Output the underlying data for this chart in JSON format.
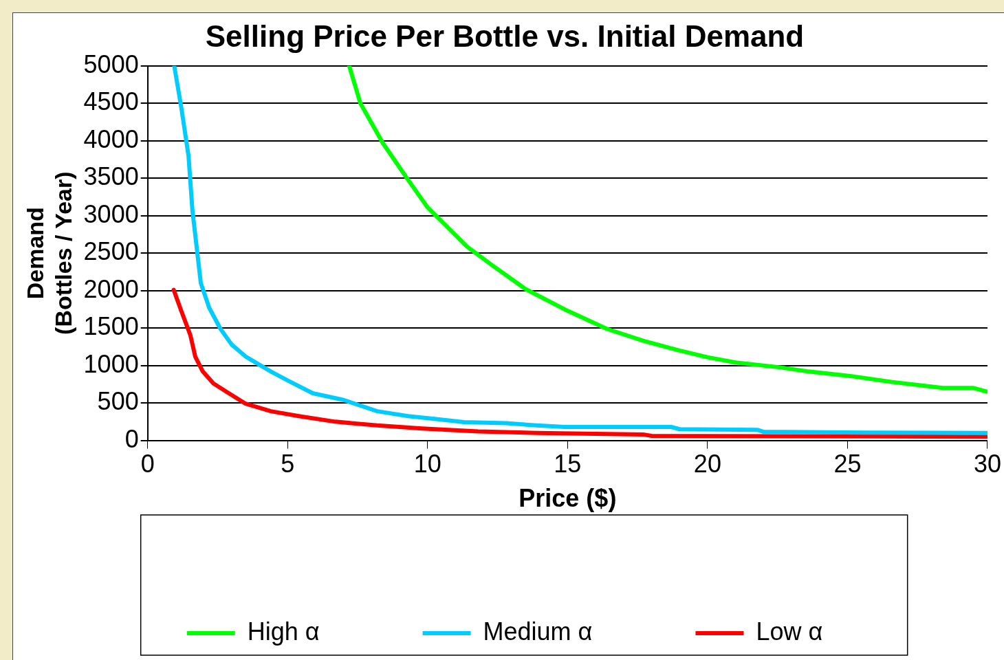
{
  "chart_data": {
    "type": "line",
    "title": "Selling Price Per Bottle vs. Initial Demand",
    "xlabel": "Price ($)",
    "ylabel": "Demand\n(Bottles / Year)",
    "xlim": [
      0,
      30
    ],
    "xticks": [
      0,
      5,
      10,
      15,
      20,
      25,
      30
    ],
    "ylim": [
      0,
      5000
    ],
    "yticks": [
      0,
      500,
      1000,
      1500,
      2000,
      2500,
      3000,
      3500,
      4000,
      4500,
      5000
    ],
    "grid": "y",
    "legend": "bottom",
    "marker": "none",
    "line_style": "solid",
    "series": [
      {
        "name": "High α",
        "color": "#00ff00",
        "x": [
          7.2,
          7.6,
          8.4,
          9.3,
          10.0,
          11.4,
          12.3,
          13.5,
          15.0,
          16.4,
          17.7,
          19.0,
          20.0,
          21.0,
          22.6,
          23.6,
          25.1,
          26.6,
          28.4,
          29.5,
          30
        ],
        "values": [
          5000,
          4500,
          3970,
          3480,
          3110,
          2590,
          2340,
          2020,
          1730,
          1490,
          1330,
          1200,
          1110,
          1040,
          975,
          920,
          860,
          780,
          700,
          700,
          650
        ]
      },
      {
        "name": "Medium α",
        "color": "#00ccff",
        "x": [
          0.95,
          1.2,
          1.46,
          1.6,
          1.9,
          2.2,
          2.6,
          3.0,
          3.5,
          4.4,
          5.0,
          5.9,
          7.0,
          8.2,
          9.3,
          10.3,
          11.3,
          12.8,
          13.9,
          14.9,
          18.7,
          19.0,
          21.8,
          22.0,
          25.6,
          30
        ],
        "values": [
          5000,
          4450,
          3800,
          3070,
          2100,
          1770,
          1490,
          1280,
          1120,
          920,
          800,
          630,
          540,
          390,
          325,
          285,
          245,
          230,
          200,
          180,
          180,
          150,
          140,
          115,
          105,
          100
        ]
      },
      {
        "name": "Low α",
        "color": "#ff0000",
        "x": [
          0.93,
          1.2,
          1.53,
          1.7,
          1.97,
          2.35,
          2.9,
          3.5,
          4.4,
          5.4,
          6.7,
          8.2,
          9.8,
          11.8,
          13.9,
          17.7,
          18.0,
          30
        ],
        "values": [
          2010,
          1730,
          1400,
          1120,
          920,
          760,
          630,
          490,
          390,
          325,
          250,
          200,
          160,
          120,
          100,
          80,
          60,
          50
        ]
      }
    ]
  }
}
